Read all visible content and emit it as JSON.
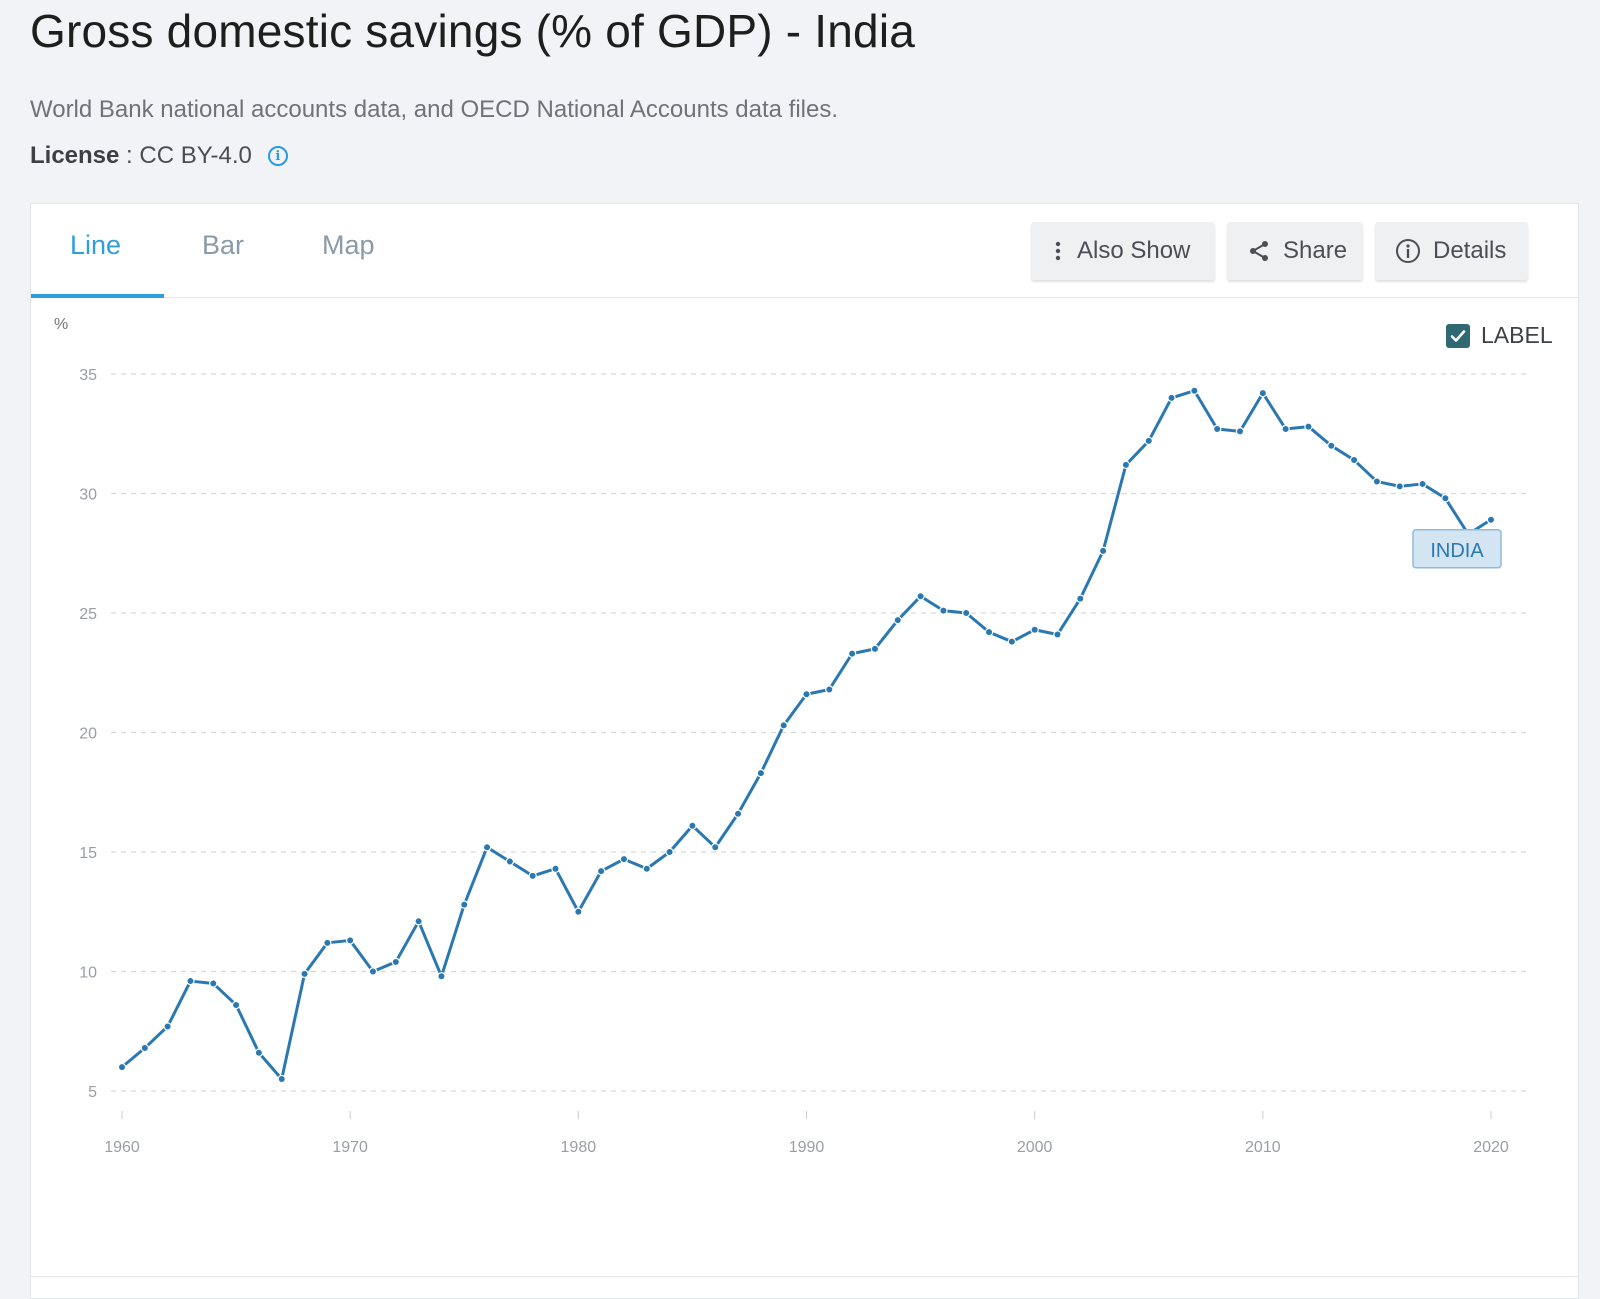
{
  "header": {
    "title": "Gross domestic savings (% of GDP) - India",
    "source": "World Bank national accounts data, and OECD National Accounts data files.",
    "license_label": "License",
    "license_sep": " : ",
    "license_value": "CC BY-4.0"
  },
  "tabs": [
    {
      "label": "Line",
      "active": true
    },
    {
      "label": "Bar",
      "active": false
    },
    {
      "label": "Map",
      "active": false
    }
  ],
  "toolbar": {
    "also_show": "Also Show",
    "share": "Share",
    "details": "Details"
  },
  "label_toggle": {
    "label": "LABEL",
    "checked": true
  },
  "colors": {
    "series": "#2a78b2",
    "accent": "#2f9ee0",
    "label_bg": "#d3e5f2"
  },
  "chart_data": {
    "type": "line",
    "ylabel": "%",
    "ylim": [
      5,
      35
    ],
    "yticks": [
      5,
      10,
      15,
      20,
      25,
      30,
      35
    ],
    "xlim": [
      1960,
      2021
    ],
    "xticks": [
      1960,
      1970,
      1980,
      1990,
      2000,
      2010,
      2020
    ],
    "grid": true,
    "series": [
      {
        "name": "INDIA",
        "x": [
          1960,
          1961,
          1962,
          1963,
          1964,
          1965,
          1966,
          1967,
          1968,
          1969,
          1970,
          1971,
          1972,
          1973,
          1974,
          1975,
          1976,
          1977,
          1978,
          1979,
          1980,
          1981,
          1982,
          1983,
          1984,
          1985,
          1986,
          1987,
          1988,
          1989,
          1990,
          1991,
          1992,
          1993,
          1994,
          1995,
          1996,
          1997,
          1998,
          1999,
          2000,
          2001,
          2002,
          2003,
          2004,
          2005,
          2006,
          2007,
          2008,
          2009,
          2010,
          2011,
          2012,
          2013,
          2014,
          2015,
          2016,
          2017,
          2018,
          2019,
          2020
        ],
        "y": [
          6.0,
          6.8,
          7.7,
          9.6,
          9.5,
          8.6,
          6.6,
          5.5,
          9.9,
          11.2,
          11.3,
          10.0,
          10.4,
          12.1,
          9.8,
          12.8,
          15.2,
          14.6,
          14.0,
          14.3,
          12.5,
          14.2,
          14.7,
          14.3,
          15.0,
          16.1,
          15.2,
          16.6,
          18.3,
          20.3,
          21.6,
          21.8,
          23.3,
          23.5,
          24.7,
          25.7,
          25.1,
          25.0,
          24.2,
          23.8,
          24.3,
          24.1,
          25.6,
          27.6,
          31.2,
          32.2,
          34.0,
          34.3,
          32.7,
          32.6,
          34.2,
          32.7,
          32.8,
          32.0,
          31.4,
          30.5,
          30.3,
          30.4,
          29.8,
          28.3,
          28.9
        ]
      }
    ]
  }
}
